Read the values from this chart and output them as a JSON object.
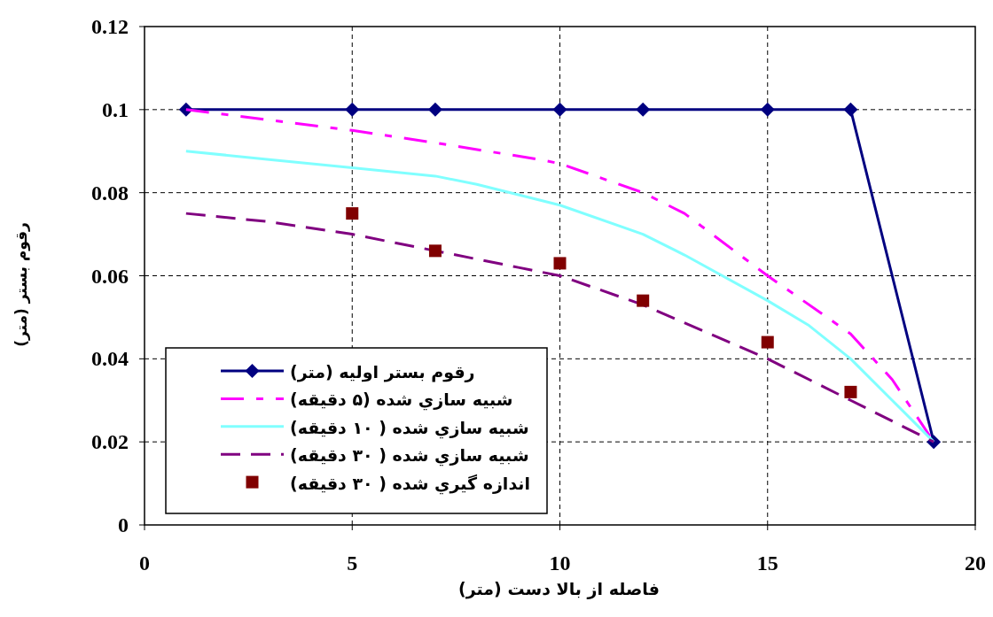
{
  "chart_data": {
    "type": "line",
    "xlabel": "فاصله از بالا دست (متر)",
    "ylabel": "رقوم بستر (متر)",
    "xlim": [
      0,
      20
    ],
    "xticks": [
      0,
      5,
      10,
      15,
      20
    ],
    "ylim": [
      0,
      0.12
    ],
    "yticks": [
      0,
      0.02,
      0.04,
      0.06,
      0.08,
      0.1,
      0.12
    ],
    "grid": true,
    "legend": "bottom left",
    "series": [
      {
        "name": "رقوم بستر اوليه (متر)",
        "color": "#000080",
        "marker": "diamond",
        "line_style": "solid",
        "x": [
          1,
          5,
          7,
          10,
          12,
          15,
          17,
          19
        ],
        "values": [
          0.1,
          0.1,
          0.1,
          0.1,
          0.1,
          0.1,
          0.1,
          0.02
        ]
      },
      {
        "name": "شبيه سازي شده (۵ دقيقه)",
        "color": "#ff00ff",
        "marker": "none",
        "line_style": "dashdot",
        "x": [
          1,
          5,
          7,
          9.5,
          10,
          12,
          13,
          15,
          17,
          18,
          19
        ],
        "values": [
          0.1,
          0.095,
          0.092,
          0.088,
          0.087,
          0.08,
          0.075,
          0.06,
          0.046,
          0.035,
          0.02
        ]
      },
      {
        "name": "شبيه سازي شده ( ۱۰ دقيقه)",
        "color": "#80ffff",
        "marker": "none",
        "line_style": "solid",
        "x": [
          1,
          3,
          5,
          7,
          8,
          10,
          12,
          13,
          15,
          16,
          17,
          18,
          19
        ],
        "values": [
          0.09,
          0.088,
          0.086,
          0.084,
          0.082,
          0.077,
          0.07,
          0.065,
          0.054,
          0.048,
          0.04,
          0.03,
          0.02
        ]
      },
      {
        "name": "شبيه سازي شده ( ۳۰ دقيقه)",
        "color": "#800080",
        "marker": "none",
        "line_style": "dashed",
        "x": [
          1,
          3,
          5,
          7,
          9,
          10,
          12,
          15,
          17,
          19
        ],
        "values": [
          0.075,
          0.073,
          0.07,
          0.066,
          0.062,
          0.06,
          0.053,
          0.04,
          0.03,
          0.02
        ]
      },
      {
        "name": "اندازه گيري شده ( ۳۰ دقيقه)",
        "type": "scatter",
        "color": "#800000",
        "marker": "square",
        "x": [
          5,
          7,
          10,
          12,
          15,
          17
        ],
        "values": [
          0.075,
          0.066,
          0.063,
          0.054,
          0.044,
          0.032
        ]
      }
    ]
  }
}
